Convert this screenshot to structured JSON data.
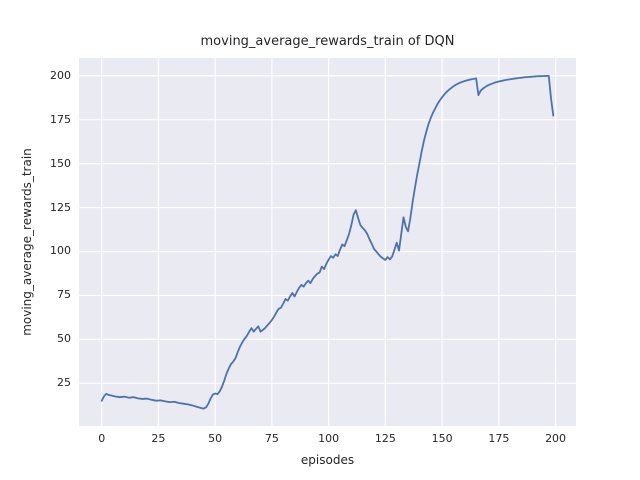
{
  "figure": {
    "title": "moving_average_rewards_train of DQN"
  },
  "chart_data": {
    "type": "line",
    "title": "moving_average_rewards_train of DQN",
    "xlabel": "episodes",
    "ylabel": "moving_average_rewards_train",
    "xlim": [
      -10,
      209
    ],
    "ylim": [
      0.7,
      210.1
    ],
    "x_ticks": [
      0,
      25,
      50,
      75,
      100,
      125,
      150,
      175,
      200
    ],
    "y_ticks": [
      25,
      50,
      75,
      100,
      125,
      150,
      175,
      200
    ],
    "grid": true,
    "legend": false,
    "styles": {
      "axes_bg": "#eaeaf2",
      "grid_color": "#ffffff",
      "line_color": "#4c72b0",
      "text_color": "#262626",
      "line_width": 1.8,
      "grid_width": 1.2
    },
    "series": [
      {
        "name": "moving_average_rewards_train",
        "x": [
          0,
          1,
          2,
          3,
          4,
          6,
          8,
          10,
          12,
          14,
          16,
          18,
          20,
          22,
          24,
          26,
          28,
          30,
          32,
          34,
          36,
          38,
          40,
          42,
          44,
          45,
          46,
          47,
          48,
          49,
          50,
          51,
          52,
          53,
          54,
          55,
          56,
          57,
          58,
          59,
          60,
          61,
          62,
          63,
          64,
          65,
          66,
          67,
          68,
          69,
          70,
          71,
          72,
          73,
          74,
          75,
          76,
          77,
          78,
          79,
          80,
          81,
          82,
          83,
          84,
          85,
          86,
          87,
          88,
          89,
          90,
          91,
          92,
          93,
          94,
          95,
          96,
          97,
          98,
          99,
          100,
          101,
          102,
          103,
          104,
          105,
          106,
          107,
          108,
          109,
          110,
          111,
          112,
          113,
          114,
          115,
          116,
          117,
          118,
          119,
          120,
          121,
          122,
          123,
          124,
          125,
          126,
          127,
          128,
          129,
          130,
          131,
          132,
          133,
          134,
          135,
          136,
          137,
          138,
          139,
          140,
          141,
          142,
          143,
          144,
          145,
          146,
          147,
          148,
          149,
          150,
          151,
          152,
          153,
          154,
          155,
          156,
          157,
          158,
          159,
          160,
          161,
          162,
          163,
          164,
          165,
          166,
          167,
          168,
          169,
          170,
          171,
          172,
          173,
          174,
          175,
          176,
          177,
          178,
          179,
          180,
          181,
          182,
          183,
          184,
          185,
          186,
          187,
          188,
          189,
          190,
          191,
          192,
          193,
          194,
          195,
          196,
          197,
          198,
          199
        ],
        "y": [
          15,
          17.6,
          19,
          18.4,
          18.1,
          17.5,
          17.1,
          17.4,
          16.8,
          17.1,
          16.4,
          16.1,
          16.3,
          15.6,
          15.1,
          15.3,
          14.7,
          14.3,
          14.5,
          13.8,
          13.4,
          13,
          12.4,
          11.6,
          10.9,
          10.6,
          11.4,
          13.4,
          16.4,
          18.6,
          19.2,
          18.8,
          20.4,
          23,
          26.5,
          30.5,
          33.5,
          36,
          37.4,
          39.4,
          43,
          46,
          48.4,
          50.4,
          52,
          54.4,
          56.4,
          54.4,
          56,
          57.4,
          54.4,
          55.4,
          56.4,
          58,
          59.4,
          61,
          63,
          65.4,
          67.4,
          68,
          70.4,
          73,
          72,
          74.4,
          76.4,
          74.4,
          77,
          79.4,
          81,
          80,
          82,
          83.4,
          82,
          84.4,
          86,
          87.4,
          88,
          91.4,
          90,
          93,
          95.4,
          97.4,
          96.4,
          98.4,
          97.4,
          101,
          104,
          103,
          106.4,
          110,
          115,
          121,
          123.5,
          119,
          115,
          113.4,
          112,
          110,
          107,
          104.4,
          101.4,
          100,
          98.4,
          97,
          96,
          95.2,
          96.8,
          95.5,
          97.2,
          101,
          105,
          100.5,
          110,
          119.5,
          114,
          111.5,
          119,
          128,
          136,
          143.5,
          150,
          157,
          163,
          168,
          172.5,
          176,
          179,
          181.5,
          184,
          186,
          187.8,
          189.4,
          190.8,
          192,
          193,
          194,
          194.8,
          195.5,
          196.1,
          196.6,
          197,
          197.4,
          197.7,
          198,
          198.2,
          198.5,
          189,
          191.5,
          192.7,
          193.6,
          194.4,
          195,
          195.5,
          196,
          196.4,
          196.7,
          197,
          197.3,
          197.6,
          197.8,
          198,
          198.2,
          198.4,
          198.6,
          198.8,
          198.9,
          199.1,
          199.2,
          199.3,
          199.4,
          199.5,
          199.6,
          199.7,
          199.75,
          199.8,
          199.85,
          199.9,
          199.9,
          187,
          177.3
        ]
      }
    ]
  }
}
